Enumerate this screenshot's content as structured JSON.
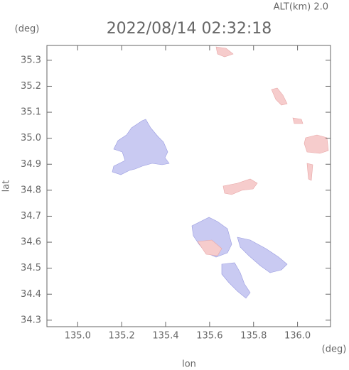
{
  "chart_data": {
    "type": "map",
    "title": "2022/08/14 02:32:18",
    "subtitle": "ALT(km) 2.0",
    "x_label": "lon",
    "y_label": "lat",
    "x_unit": "(deg)",
    "y_unit": "(deg)",
    "xlim": [
      134.86,
      136.15
    ],
    "ylim": [
      34.275,
      35.357
    ],
    "xticks": [
      {
        "value": 135,
        "label": "135.0"
      },
      135.2,
      135.4,
      135.6,
      135.8,
      {
        "value": 136,
        "label": "136.0"
      }
    ],
    "yticks": [
      34.3,
      34.4,
      34.5,
      34.6,
      34.7,
      34.8,
      34.9,
      {
        "value": 35,
        "label": "35.0"
      },
      35.1,
      35.2,
      35.3
    ]
  }
}
